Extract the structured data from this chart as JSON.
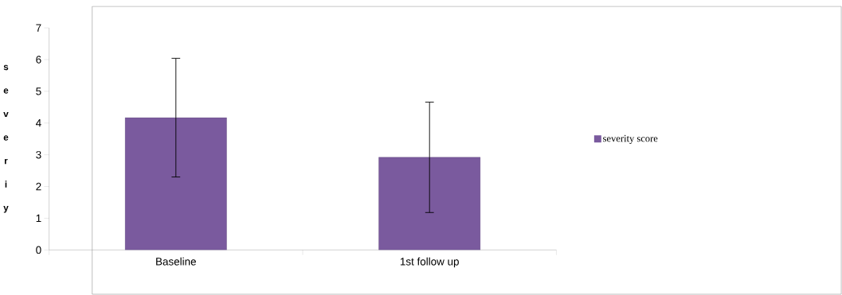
{
  "chart_data": {
    "type": "bar",
    "ylabel": "severiy",
    "categories": [
      "Baseline",
      "1st follow up"
    ],
    "series": [
      {
        "name": "severity score",
        "color": "#7a5a9e",
        "values": [
          4.17,
          2.92
        ],
        "errors": [
          1.87,
          1.74
        ]
      }
    ],
    "ylim": [
      0,
      7
    ],
    "yticks": [
      0,
      1,
      2,
      3,
      4,
      5,
      6,
      7
    ],
    "legend": "right"
  }
}
